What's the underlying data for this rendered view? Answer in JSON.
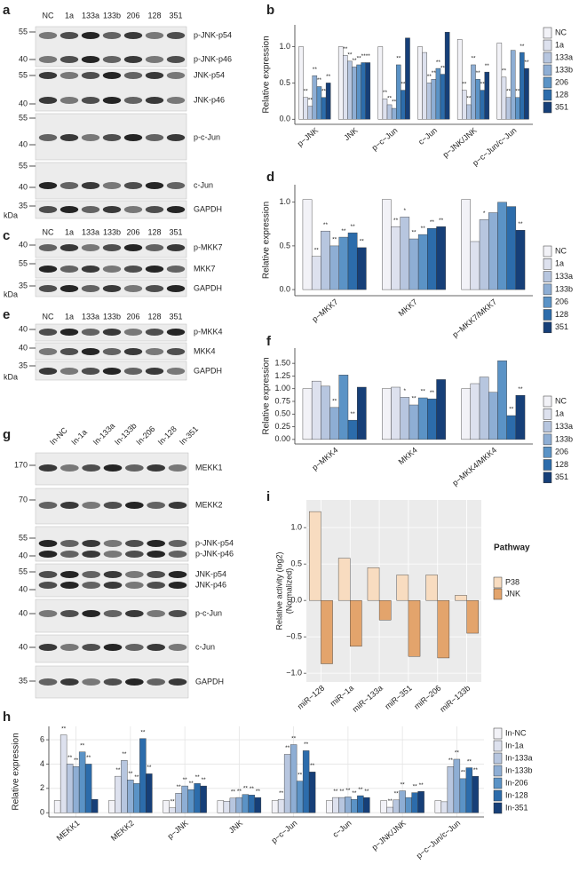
{
  "blots": [
    {
      "label": "a",
      "lanes": [
        "NC",
        "1a",
        "133a",
        "133b",
        "206",
        "128",
        "351"
      ],
      "unit": "kDa",
      "strips": [
        {
          "markers": [
            55,
            40
          ],
          "bands": [
            "p-JNK-p54",
            "p-JNK-p46"
          ]
        },
        {
          "markers": [
            55,
            40
          ],
          "bands": [
            "JNK-p54",
            "JNK-p46"
          ]
        },
        {
          "markers": [
            55,
            40
          ],
          "bands": [
            "p-c-Jun"
          ]
        },
        {
          "markers": [
            55,
            40
          ],
          "bands": [
            "c-Jun"
          ]
        },
        {
          "markers": [
            35
          ],
          "bands": [
            "GAPDH"
          ]
        }
      ]
    },
    {
      "label": "c",
      "lanes": [
        "NC",
        "1a",
        "133a",
        "133b",
        "206",
        "128",
        "351"
      ],
      "unit": "kDa",
      "strips": [
        {
          "markers": [
            40
          ],
          "bands": [
            "p-MKK7"
          ]
        },
        {
          "markers": [
            55
          ],
          "bands": [
            "MKK7"
          ]
        },
        {
          "markers": [
            35
          ],
          "bands": [
            "GAPDH"
          ]
        }
      ]
    },
    {
      "label": "e",
      "lanes": [
        "NC",
        "1a",
        "133a",
        "133b",
        "206",
        "128",
        "351"
      ],
      "unit": "kDa",
      "strips": [
        {
          "markers": [
            40
          ],
          "bands": [
            "p-MKK4"
          ]
        },
        {
          "markers": [
            40
          ],
          "bands": [
            "MKK4"
          ]
        },
        {
          "markers": [
            35
          ],
          "bands": [
            "GAPDH"
          ]
        }
      ]
    },
    {
      "label": "g",
      "lanes": [
        "In-NC",
        "In-1a",
        "In-133a",
        "In-133b",
        "In-206",
        "In-128",
        "In-351"
      ],
      "strips": [
        {
          "markers": [
            170
          ],
          "bands": [
            "MEKK1"
          ]
        },
        {
          "markers": [
            70
          ],
          "bands": [
            "MEKK2"
          ]
        },
        {
          "markers": [
            55,
            40
          ],
          "bands": [
            "p-JNK-p54",
            "p-JNK-p46"
          ]
        },
        {
          "markers": [
            55,
            40
          ],
          "bands": [
            "JNK-p54",
            "JNK-p46"
          ]
        },
        {
          "markers": [
            40
          ],
          "bands": [
            "p-c-Jun"
          ]
        },
        {
          "markers": [
            40
          ],
          "bands": [
            "c-Jun"
          ]
        },
        {
          "markers": [
            35
          ],
          "bands": [
            "GAPDH"
          ]
        }
      ]
    }
  ],
  "chart_data": [
    {
      "type": "bar",
      "label": "b",
      "ylabel": "Relative expression",
      "categories": [
        "p−JNK",
        "JNK",
        "p−c−Jun",
        "c−Jun",
        "p−JNK/JNK",
        "p−c−Jun/c−Jun"
      ],
      "series": [
        {
          "name": "NC",
          "color": "#f2f2f7",
          "values": [
            1.0,
            1.0,
            1.0,
            1.0,
            1.1,
            1.05
          ],
          "stars": [
            null,
            null,
            null,
            null,
            null,
            null
          ]
        },
        {
          "name": "1a",
          "color": "#dde1ee",
          "values": [
            0.3,
            0.88,
            0.28,
            0.92,
            0.4,
            0.58
          ],
          "stars": [
            "**",
            "**",
            "**",
            null,
            "**",
            "**"
          ]
        },
        {
          "name": "133a",
          "color": "#b7c6df",
          "values": [
            0.18,
            0.8,
            0.2,
            0.5,
            0.2,
            0.3
          ],
          "stars": [
            "**",
            "**",
            "**",
            "**",
            "**",
            "**"
          ]
        },
        {
          "name": "133b",
          "color": "#8eaed4",
          "values": [
            0.6,
            0.72,
            0.15,
            0.55,
            0.75,
            0.95
          ],
          "stars": [
            "**",
            "**",
            "**",
            "**",
            "**",
            null
          ]
        },
        {
          "name": "206",
          "color": "#5b93c6",
          "values": [
            0.45,
            0.75,
            0.75,
            0.7,
            0.55,
            0.3
          ],
          "stars": [
            "**",
            "**",
            "**",
            "**",
            "**",
            "**"
          ]
        },
        {
          "name": "128",
          "color": "#2c6cab",
          "values": [
            0.3,
            0.78,
            0.4,
            0.62,
            0.4,
            0.92
          ],
          "stars": [
            "**",
            "**",
            "**",
            "**",
            "**",
            "**"
          ]
        },
        {
          "name": "351",
          "color": "#163f78",
          "values": [
            0.5,
            0.78,
            1.12,
            1.2,
            0.65,
            0.7
          ],
          "stars": [
            "**",
            "**",
            null,
            null,
            "**",
            "**"
          ]
        }
      ],
      "ylim": [
        -0.07,
        1.3
      ],
      "yticks": [
        {
          "value": 0,
          "label": "0.0"
        },
        0.5,
        {
          "value": 1,
          "label": "1.0"
        }
      ],
      "grid": false,
      "legend": "right"
    },
    {
      "type": "bar",
      "label": "d",
      "ylabel": "Relative expression",
      "categories": [
        "p−MKK7",
        "MKK7",
        "p−MKK7/MKK7"
      ],
      "series": [
        {
          "name": "NC",
          "color": "#f2f2f7",
          "values": [
            1.03,
            1.03,
            1.03
          ],
          "stars": [
            null,
            null,
            null
          ]
        },
        {
          "name": "1a",
          "color": "#dde1ee",
          "values": [
            0.38,
            0.72,
            0.55
          ],
          "stars": [
            "**",
            "**",
            null
          ]
        },
        {
          "name": "133a",
          "color": "#b7c6df",
          "values": [
            0.67,
            0.83,
            0.8
          ],
          "stars": [
            "**",
            "*",
            "*"
          ]
        },
        {
          "name": "133b",
          "color": "#8eaed4",
          "values": [
            0.5,
            0.58,
            0.88
          ],
          "stars": [
            "**",
            "**",
            null
          ]
        },
        {
          "name": "206",
          "color": "#5b93c6",
          "values": [
            0.6,
            0.63,
            1.0
          ],
          "stars": [
            "**",
            "**",
            null
          ]
        },
        {
          "name": "128",
          "color": "#2c6cab",
          "values": [
            0.65,
            0.7,
            0.95
          ],
          "stars": [
            "**",
            "**",
            null
          ]
        },
        {
          "name": "351",
          "color": "#163f78",
          "values": [
            0.48,
            0.72,
            0.68
          ],
          "stars": [
            "**",
            "**",
            "**"
          ]
        }
      ],
      "ylim": [
        -0.07,
        1.2
      ],
      "yticks": [
        {
          "value": 0,
          "label": "0.0"
        },
        0.5,
        {
          "value": 1,
          "label": "1.0"
        }
      ],
      "grid": false,
      "legend": "right"
    },
    {
      "type": "bar",
      "label": "f",
      "ylabel": "Relative expression",
      "categories": [
        "p−MKK4",
        "MKK4",
        "p−MKK4/MKK4"
      ],
      "series": [
        {
          "name": "NC",
          "color": "#f2f2f7",
          "values": [
            1.0,
            1.0,
            1.0
          ],
          "stars": [
            null,
            null,
            null
          ]
        },
        {
          "name": "1a",
          "color": "#dde1ee",
          "values": [
            1.15,
            1.03,
            1.1
          ],
          "stars": [
            null,
            null,
            null
          ]
        },
        {
          "name": "133a",
          "color": "#b7c6df",
          "values": [
            1.05,
            0.83,
            1.23
          ],
          "stars": [
            null,
            "*",
            null
          ]
        },
        {
          "name": "133b",
          "color": "#8eaed4",
          "values": [
            0.63,
            0.68,
            0.93
          ],
          "stars": [
            "**",
            "**",
            null
          ]
        },
        {
          "name": "206",
          "color": "#5b93c6",
          "values": [
            1.27,
            0.82,
            1.55
          ],
          "stars": [
            null,
            "**",
            null
          ]
        },
        {
          "name": "128",
          "color": "#2c6cab",
          "values": [
            0.38,
            0.8,
            0.47
          ],
          "stars": [
            "**",
            "**",
            "**"
          ]
        },
        {
          "name": "351",
          "color": "#163f78",
          "values": [
            1.03,
            1.18,
            0.87
          ],
          "stars": [
            null,
            null,
            "**"
          ]
        }
      ],
      "ylim": [
        -0.09,
        1.8
      ],
      "yticks": [
        {
          "value": 0,
          "label": "0.00"
        },
        {
          "value": 0.25,
          "label": "0.25"
        },
        {
          "value": 0.5,
          "label": "0.50"
        },
        {
          "value": 0.75,
          "label": "0.75"
        },
        {
          "value": 1,
          "label": "1.00"
        },
        {
          "value": 1.25,
          "label": "1.25"
        },
        {
          "value": 1.5,
          "label": "1.50"
        }
      ],
      "grid": false,
      "legend": "right"
    },
    {
      "type": "bar",
      "label": "i",
      "ylabel": [
        "Relative activity (log2)",
        "(Normalized)"
      ],
      "legend_title": "Pathway",
      "categories": [
        "miR−128",
        "miR−1a",
        "miR−133a",
        "miR−351",
        "miR−206",
        "miR−133b"
      ],
      "series": [
        {
          "name": "P38",
          "color": "#f8dcc0",
          "values": [
            1.22,
            0.58,
            0.45,
            0.35,
            0.35,
            0.07
          ]
        },
        {
          "name": "JNK",
          "color": "#e3a46c",
          "values": [
            -0.87,
            -0.63,
            -0.27,
            -0.77,
            -0.79,
            -0.45
          ]
        }
      ],
      "ylim": [
        -1.12,
        1.38
      ],
      "yticks": [
        {
          "value": -1,
          "label": "−1.0"
        },
        {
          "value": -0.5,
          "label": "−0.5"
        },
        {
          "value": 0,
          "label": "0.0"
        },
        0.5,
        {
          "value": 1,
          "label": "1.0"
        }
      ],
      "grid": true,
      "background": "#ebebeb",
      "legend": "right"
    },
    {
      "type": "bar",
      "label": "h",
      "ylabel": "Relative expression",
      "categories": [
        "MEKK1",
        "MEKK2",
        "p−JNK",
        "JNK",
        "p−c−Jun",
        "c−Jun",
        "p−JNK/JNK",
        "p−c−Jun/c−Jun"
      ],
      "series": [
        {
          "name": "In-NC",
          "color": "#f2f2f7",
          "values": [
            1,
            1,
            1,
            1,
            1,
            1,
            1,
            1
          ],
          "stars": [
            null,
            null,
            null,
            null,
            null,
            null,
            null,
            null
          ]
        },
        {
          "name": "In-1a",
          "color": "#dde1ee",
          "values": [
            6.4,
            3.0,
            0.4,
            0.95,
            1.1,
            1.25,
            0.45,
            0.9
          ],
          "stars": [
            "**",
            "**",
            "**",
            null,
            "**",
            "**",
            "**",
            null
          ]
        },
        {
          "name": "In-133a",
          "color": "#b7c6df",
          "values": [
            4.0,
            4.3,
            1.6,
            1.2,
            4.8,
            1.25,
            1.05,
            3.8
          ],
          "stars": [
            "**",
            "**",
            "**",
            "**",
            "**",
            "**",
            "**",
            "**"
          ]
        },
        {
          "name": "In-133b",
          "color": "#8eaed4",
          "values": [
            3.8,
            2.7,
            2.2,
            1.25,
            5.6,
            1.3,
            1.8,
            4.4
          ],
          "stars": [
            "**",
            "**",
            "**",
            "**",
            "**",
            "**",
            "**",
            "**"
          ]
        },
        {
          "name": "In-206",
          "color": "#5b93c6",
          "values": [
            5.0,
            2.4,
            1.9,
            1.5,
            2.6,
            1.1,
            1.25,
            2.8
          ],
          "stars": [
            "**",
            "**",
            "**",
            "**",
            "**",
            "**",
            null,
            "**"
          ]
        },
        {
          "name": "In-128",
          "color": "#2c6cab",
          "values": [
            4.0,
            6.1,
            2.4,
            1.45,
            5.1,
            1.4,
            1.65,
            3.7
          ],
          "stars": [
            "**",
            "**",
            "**",
            "**",
            "**",
            "**",
            "**",
            "**"
          ]
        },
        {
          "name": "In-351",
          "color": "#163f78",
          "values": [
            1.1,
            3.2,
            2.2,
            1.25,
            3.35,
            1.25,
            1.75,
            3.0
          ],
          "stars": [
            null,
            "**",
            "**",
            "**",
            "**",
            "**",
            "**",
            "**"
          ]
        }
      ],
      "ylim": [
        -0.35,
        7.1
      ],
      "yticks": [
        0,
        2,
        4,
        6
      ],
      "grid": true,
      "legend": "right"
    }
  ]
}
